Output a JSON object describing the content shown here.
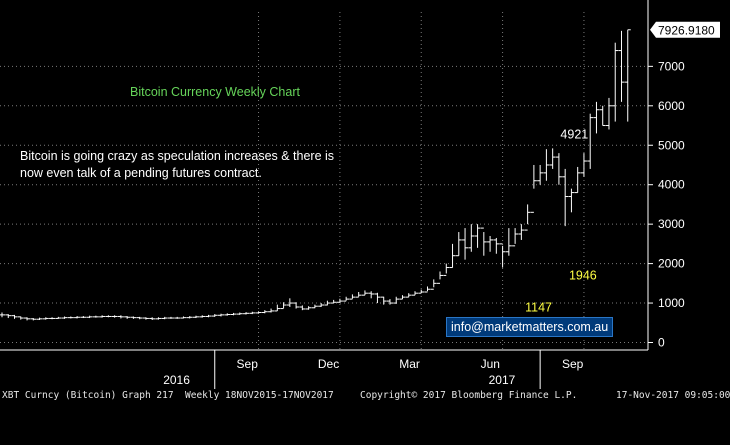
{
  "chart_data": {
    "type": "ohlc",
    "title": "Bitcoin Currency Weekly Chart",
    "annotation": "Bitcoin is going crazy as speculation increases & there is now even talk of a pending futures contract.",
    "ylim": [
      -100,
      8000
    ],
    "y_ticks": [
      0,
      1000,
      2000,
      3000,
      4000,
      5000,
      6000,
      7000
    ],
    "x_month_labels": [
      {
        "label": "Sep",
        "week": 41
      },
      {
        "label": "Dec",
        "week": 54
      },
      {
        "label": "Mar",
        "week": 67
      },
      {
        "label": "Jun",
        "week": 80
      },
      {
        "label": "Sep",
        "week": 93
      }
    ],
    "x_year_labels": [
      {
        "label": "2016",
        "week": 28
      },
      {
        "label": "2017",
        "week": 80
      }
    ],
    "x_year_dividers": [
      34,
      86
    ],
    "last_price_label": "7926.9180",
    "last_price": 7926.918,
    "price_annotations": [
      {
        "text": "4921",
        "week": 91,
        "value": 4921,
        "color": "#ffffff"
      },
      {
        "text": "1946",
        "week": 93,
        "value": 1946,
        "color": "#ffff44"
      },
      {
        "text": "1147",
        "week": 86,
        "value": 1147,
        "color": "#ffff44"
      }
    ],
    "series": [
      {
        "close": [
          700,
          680,
          650,
          620,
          600,
          590,
          600,
          610,
          610,
          620,
          630,
          630,
          640,
          640,
          650,
          650,
          660,
          660,
          660,
          650,
          640,
          630,
          620,
          610,
          600,
          610,
          620,
          620,
          620,
          630,
          640,
          650,
          660,
          670,
          690,
          700,
          710,
          720,
          730,
          740,
          750,
          760,
          780,
          800,
          860,
          950,
          1000,
          900,
          850,
          880,
          920,
          950,
          1000,
          1020,
          1050,
          1100,
          1150,
          1200,
          1250,
          1230,
          1150,
          1050,
          1000,
          1100,
          1150,
          1200,
          1250,
          1280,
          1350,
          1500,
          1700,
          1900,
          2200,
          2600,
          2400,
          2700,
          2900,
          2550,
          2600,
          2500,
          2300,
          2450,
          2750,
          2850,
          3300,
          4100,
          4300,
          4500,
          4700,
          4200,
          3700,
          3800,
          4300,
          4600,
          5700,
          5900,
          5500,
          6000,
          7400,
          6600,
          7927
        ],
        "high": [
          760,
          720,
          700,
          660,
          640,
          620,
          630,
          640,
          640,
          650,
          660,
          660,
          670,
          670,
          680,
          680,
          690,
          690,
          690,
          690,
          670,
          660,
          650,
          640,
          640,
          640,
          650,
          650,
          650,
          660,
          670,
          680,
          690,
          700,
          720,
          730,
          740,
          750,
          760,
          770,
          780,
          790,
          820,
          860,
          960,
          1020,
          1120,
          1020,
          940,
          920,
          960,
          1000,
          1060,
          1080,
          1110,
          1160,
          1220,
          1280,
          1320,
          1300,
          1260,
          1160,
          1100,
          1160,
          1200,
          1250,
          1300,
          1340,
          1420,
          1600,
          1800,
          2000,
          2500,
          2800,
          2900,
          3000,
          3000,
          2800,
          2700,
          2650,
          2450,
          2900,
          2900,
          3000,
          3500,
          4500,
          4500,
          4900,
          4921,
          4800,
          4400,
          3900,
          4450,
          4800,
          5800,
          6100,
          6000,
          6200,
          7600,
          7900,
          7927
        ],
        "low": [
          640,
          620,
          600,
          580,
          560,
          560,
          570,
          580,
          590,
          600,
          600,
          610,
          610,
          620,
          620,
          630,
          630,
          640,
          630,
          610,
          600,
          600,
          590,
          580,
          570,
          580,
          590,
          600,
          600,
          610,
          610,
          620,
          630,
          640,
          650,
          660,
          680,
          690,
          700,
          710,
          720,
          730,
          740,
          760,
          800,
          870,
          900,
          860,
          820,
          830,
          870,
          900,
          940,
          990,
          1010,
          1060,
          1110,
          1160,
          1200,
          1120,
          1000,
          960,
          960,
          980,
          1100,
          1150,
          1200,
          1250,
          1300,
          1400,
          1600,
          1750,
          1900,
          2200,
          2100,
          2300,
          2400,
          2200,
          2300,
          2250,
          1900,
          2200,
          2500,
          2600,
          3000,
          3900,
          4000,
          4100,
          4400,
          4000,
          2950,
          3300,
          3800,
          4200,
          4400,
          5300,
          5500,
          5400,
          5600,
          6100,
          5600
        ]
      }
    ],
    "colors": {
      "background": "#000000",
      "bars": "#ffffff",
      "grid": "#7a7a7a",
      "axis_text": "#ffffff",
      "title": "#66d45a",
      "highlight": "#ffff44",
      "last_price_box": "#ffffff"
    }
  },
  "footer": {
    "ticker": "XBT Curncy (Bitcoin) Graph 217  Weekly 18NOV2015-17NOV2017",
    "copyright": "Copyright© 2017 Bloomberg Finance L.P.",
    "timestamp": "17-Nov-2017 09:05:00"
  },
  "info_link": "info@marketmatters.com.au"
}
